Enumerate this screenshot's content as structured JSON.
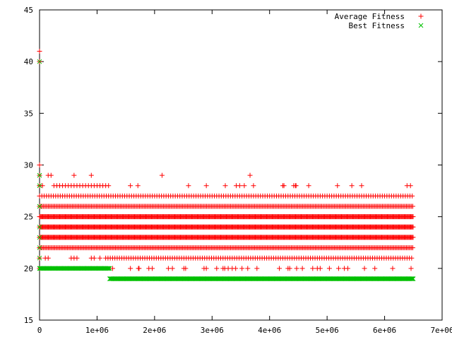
{
  "chart_data": {
    "type": "scatter",
    "title": "",
    "xlabel": "",
    "ylabel": "",
    "xlim": [
      0,
      7000000
    ],
    "ylim": [
      15,
      45
    ],
    "grid": false,
    "legend_position": "top-right",
    "x_ticks": [
      {
        "value": 0,
        "label": "0"
      },
      {
        "value": 1000000,
        "label": "1e+06"
      },
      {
        "value": 2000000,
        "label": "2e+06"
      },
      {
        "value": 3000000,
        "label": "3e+06"
      },
      {
        "value": 4000000,
        "label": "4e+06"
      },
      {
        "value": 5000000,
        "label": "5e+06"
      },
      {
        "value": 6000000,
        "label": "6e+06"
      },
      {
        "value": 7000000,
        "label": "7e+06"
      }
    ],
    "y_ticks": [
      {
        "value": 15,
        "label": "15"
      },
      {
        "value": 20,
        "label": "20"
      },
      {
        "value": 25,
        "label": "25"
      },
      {
        "value": 30,
        "label": "30"
      },
      {
        "value": 35,
        "label": "35"
      },
      {
        "value": 40,
        "label": "40"
      },
      {
        "value": 45,
        "label": "45"
      }
    ],
    "series": [
      {
        "name": "Average Fitness",
        "marker": "plus",
        "color": "#ff0000",
        "points": [
          [
            0,
            41
          ],
          [
            0,
            40
          ],
          [
            0,
            30
          ],
          [
            0,
            29
          ],
          [
            0,
            28
          ],
          [
            0,
            22
          ],
          [
            0,
            21
          ],
          [
            150000,
            29
          ],
          [
            200000,
            29
          ],
          [
            600000,
            29
          ],
          [
            900000,
            29
          ],
          [
            2130000,
            29
          ],
          [
            3660000,
            29
          ],
          [
            0,
            28
          ],
          [
            50000,
            28
          ],
          [
            250000,
            28
          ],
          [
            300000,
            28
          ],
          [
            350000,
            28
          ],
          [
            400000,
            28
          ],
          [
            450000,
            28
          ],
          [
            500000,
            28
          ],
          [
            550000,
            28
          ],
          [
            600000,
            28
          ],
          [
            650000,
            28
          ],
          [
            700000,
            28
          ],
          [
            750000,
            28
          ],
          [
            800000,
            28
          ],
          [
            850000,
            28
          ],
          [
            900000,
            28
          ],
          [
            950000,
            28
          ],
          [
            1000000,
            28
          ],
          [
            1050000,
            28
          ],
          [
            1100000,
            28
          ],
          [
            1150000,
            28
          ],
          [
            1200000,
            28
          ],
          [
            1580000,
            28
          ],
          [
            1710000,
            28
          ],
          [
            2590000,
            28
          ],
          [
            2900000,
            28
          ],
          [
            3230000,
            28
          ],
          [
            3420000,
            28
          ],
          [
            3480000,
            28
          ],
          [
            3560000,
            28
          ],
          [
            3720000,
            28
          ],
          [
            4230000,
            28
          ],
          [
            4250000,
            28
          ],
          [
            4420000,
            28
          ],
          [
            4450000,
            28
          ],
          [
            4460000,
            28
          ],
          [
            4680000,
            28
          ],
          [
            5180000,
            28
          ],
          [
            5430000,
            28
          ],
          [
            5600000,
            28
          ],
          [
            6390000,
            28
          ],
          [
            6450000,
            28
          ],
          [
            0,
            23
          ],
          [
            0,
            22
          ],
          [
            100000,
            21
          ],
          [
            150000,
            21
          ],
          [
            550000,
            21
          ],
          [
            600000,
            21
          ],
          [
            650000,
            21
          ],
          [
            900000,
            21
          ],
          [
            950000,
            21
          ],
          [
            1050000,
            21
          ],
          [
            0,
            20
          ],
          [
            1270000,
            20
          ],
          [
            1580000,
            20
          ],
          [
            1720000,
            20
          ],
          [
            1730000,
            20
          ],
          [
            1900000,
            20
          ],
          [
            1960000,
            20
          ],
          [
            2240000,
            20
          ],
          [
            2310000,
            20
          ],
          [
            2510000,
            20
          ],
          [
            2540000,
            20
          ],
          [
            2860000,
            20
          ],
          [
            2900000,
            20
          ],
          [
            3080000,
            20
          ],
          [
            3190000,
            20
          ],
          [
            3220000,
            20
          ],
          [
            3280000,
            20
          ],
          [
            3350000,
            20
          ],
          [
            3410000,
            20
          ],
          [
            3520000,
            20
          ],
          [
            3620000,
            20
          ],
          [
            3780000,
            20
          ],
          [
            4170000,
            20
          ],
          [
            4320000,
            20
          ],
          [
            4350000,
            20
          ],
          [
            4470000,
            20
          ],
          [
            4570000,
            20
          ],
          [
            4750000,
            20
          ],
          [
            4830000,
            20
          ],
          [
            4880000,
            20
          ],
          [
            5040000,
            20
          ],
          [
            5200000,
            20
          ],
          [
            5300000,
            20
          ],
          [
            5360000,
            20
          ],
          [
            5650000,
            20
          ],
          [
            5830000,
            20
          ],
          [
            6140000,
            20
          ],
          [
            6460000,
            20
          ]
        ],
        "bands": [
          {
            "y": 27,
            "x_from": 0,
            "x_to": 6480000,
            "step": 40000
          },
          {
            "y": 26,
            "x_from": 0,
            "x_to": 6500000,
            "step": 22000
          },
          {
            "y": 25,
            "x_from": 0,
            "x_to": 6500000,
            "step": 14000
          },
          {
            "y": 24,
            "x_from": 0,
            "x_to": 6500000,
            "step": 14000
          },
          {
            "y": 23,
            "x_from": 0,
            "x_to": 6500000,
            "step": 14000
          },
          {
            "y": 22,
            "x_from": 0,
            "x_to": 6500000,
            "step": 22000
          },
          {
            "y": 21,
            "x_from": 1150000,
            "x_to": 6500000,
            "step": 40000
          }
        ]
      },
      {
        "name": "Best Fitness",
        "marker": "cross",
        "color": "#00c000",
        "points": [
          [
            0,
            40
          ],
          [
            0,
            29
          ],
          [
            0,
            28
          ],
          [
            0,
            26
          ],
          [
            0,
            24
          ],
          [
            0,
            23
          ],
          [
            0,
            22
          ],
          [
            0,
            21
          ],
          [
            0,
            20
          ]
        ],
        "bands": [
          {
            "y": 20,
            "x_from": 0,
            "x_to": 1220000,
            "step": 14000
          },
          {
            "y": 19,
            "x_from": 1220000,
            "x_to": 6500000,
            "step": 14000
          }
        ]
      }
    ]
  }
}
